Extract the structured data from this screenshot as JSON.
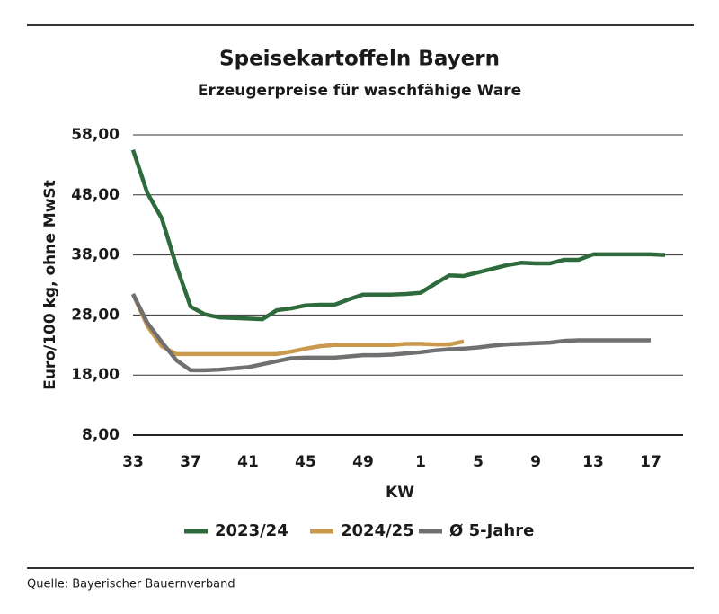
{
  "chart_data": {
    "type": "line",
    "title": "Speisekartoffeln Bayern",
    "subtitle": "Erzeugerpreise für waschfähige Ware",
    "y_label": "Euro/100 kg, ohne MwSt",
    "x_label": "KW",
    "source": "Quelle: Bayerischer Bauernverband",
    "categories": [
      "33",
      null,
      null,
      null,
      "37",
      null,
      null,
      null,
      "41",
      null,
      null,
      null,
      "45",
      null,
      null,
      null,
      "49",
      null,
      null,
      null,
      "1",
      null,
      null,
      null,
      "5",
      null,
      null,
      null,
      "9",
      null,
      null,
      null,
      "13",
      null,
      null,
      null,
      "17",
      null
    ],
    "series": [
      {
        "name": "2023/24",
        "color": "#2e6b3c",
        "values": [
          55.5,
          48.3,
          44.1,
          36.3,
          29.4,
          28.1,
          27.6,
          27.5,
          27.4,
          27.3,
          28.8,
          29.1,
          29.6,
          29.7,
          29.7,
          30.6,
          31.4,
          31.4,
          31.4,
          31.5,
          31.7,
          33.2,
          34.6,
          34.5,
          35.1,
          35.7,
          36.3,
          36.7,
          36.6,
          36.6,
          37.2,
          37.2,
          38.1,
          38.1,
          38.1,
          38.1,
          38.1,
          38.0
        ]
      },
      {
        "name": "2024/25",
        "color": "#c9994d",
        "values": [
          31.5,
          26.2,
          22.8,
          21.5,
          21.5,
          21.5,
          21.5,
          21.5,
          21.5,
          21.5,
          21.5,
          21.9,
          22.4,
          22.8,
          23.0,
          23.0,
          23.0,
          23.0,
          23.0,
          23.2,
          23.2,
          23.1,
          23.1,
          23.6,
          null,
          null,
          null,
          null,
          null,
          null,
          null,
          null,
          null,
          null,
          null,
          null,
          null,
          null
        ]
      },
      {
        "name": "Ø 5-Jahre",
        "color": "#707070",
        "values": [
          31.5,
          26.7,
          23.5,
          20.5,
          18.8,
          18.8,
          18.9,
          19.1,
          19.3,
          19.8,
          20.3,
          20.8,
          20.9,
          20.9,
          20.9,
          21.1,
          21.3,
          21.3,
          21.4,
          21.6,
          21.8,
          22.1,
          22.3,
          22.4,
          22.6,
          22.9,
          23.1,
          23.2,
          23.3,
          23.4,
          23.7,
          23.8,
          23.8,
          23.8,
          23.8,
          23.8,
          23.8,
          null
        ]
      }
    ],
    "ylim": [
      8,
      58
    ],
    "yticks": [
      {
        "value": 8,
        "label": "8,00"
      },
      {
        "value": 18,
        "label": "18,00"
      },
      {
        "value": 28,
        "label": "28,00"
      },
      {
        "value": 38,
        "label": "38,00"
      },
      {
        "value": 48,
        "label": "48,00"
      },
      {
        "value": 58,
        "label": "58,00"
      }
    ],
    "grid": true
  }
}
